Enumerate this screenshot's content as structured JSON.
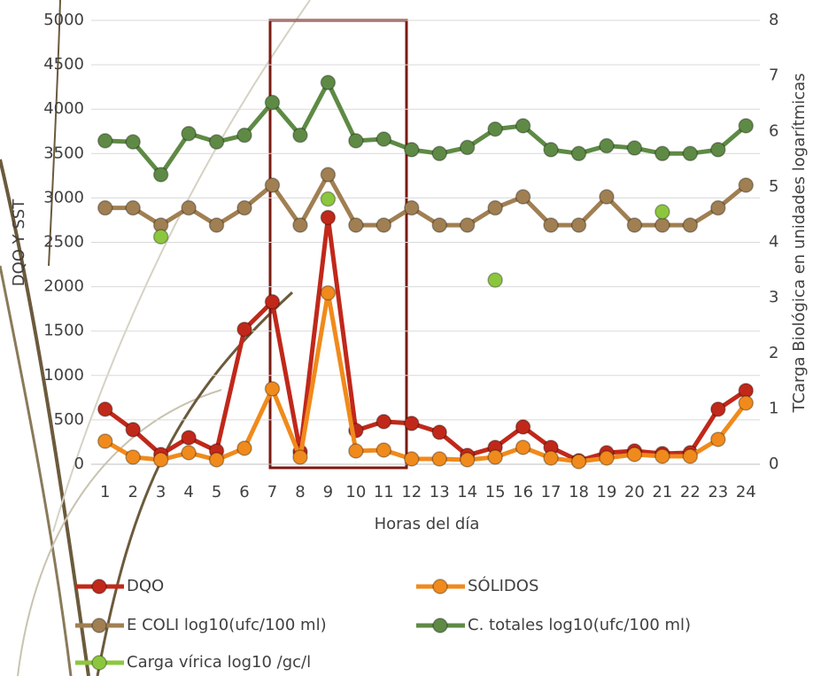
{
  "chart_data": {
    "type": "line",
    "x_label": "Horas del día",
    "y_label": "DQO Y SST",
    "y2_label": "TCarga Biológica en unidades logarítmicas",
    "categories": [
      "1",
      "2",
      "3",
      "4",
      "5",
      "6",
      "7",
      "8",
      "9",
      "10",
      "11",
      "12",
      "13",
      "14",
      "15",
      "16",
      "17",
      "18",
      "19",
      "20",
      "21",
      "22",
      "23",
      "24"
    ],
    "ylim": [
      0,
      5000
    ],
    "yticks": [
      0,
      500,
      1000,
      1500,
      2000,
      2500,
      3000,
      3500,
      4000,
      4500,
      5000
    ],
    "y2lim": [
      0,
      8
    ],
    "y2ticks": [
      0,
      1,
      2,
      3,
      4,
      5,
      6,
      7,
      8
    ],
    "grid": true,
    "series": [
      {
        "name": "DQO",
        "color": "#c0281a",
        "values": [
          620,
          390,
          110,
          300,
          150,
          1520,
          1830,
          140,
          2780,
          380,
          480,
          460,
          360,
          100,
          190,
          420,
          190,
          40,
          130,
          150,
          120,
          130,
          620,
          830
        ]
      },
      {
        "name": "SÓLIDOS",
        "color": "#f08a1c",
        "values": [
          260,
          80,
          50,
          130,
          50,
          180,
          850,
          80,
          1930,
          150,
          160,
          60,
          60,
          50,
          80,
          190,
          70,
          30,
          70,
          110,
          90,
          90,
          280,
          690
        ]
      },
      {
        "name": "E COLI log10(ufc/100 ml)",
        "color": "#a07f52",
        "axis": "y2",
        "values": [
          4.62,
          4.62,
          4.31,
          4.62,
          4.31,
          4.62,
          5.03,
          4.31,
          5.22,
          4.31,
          4.31,
          4.62,
          4.31,
          4.31,
          4.62,
          4.82,
          4.31,
          4.31,
          4.82,
          4.31,
          4.31,
          4.31,
          4.62,
          5.03
        ]
      },
      {
        "name": "C. totales log10(ufc/100 ml)",
        "color": "#5e8a45",
        "axis": "y2",
        "values": [
          5.83,
          5.81,
          5.22,
          5.96,
          5.81,
          5.93,
          6.52,
          5.93,
          6.88,
          5.83,
          5.86,
          5.67,
          5.6,
          5.71,
          6.04,
          6.1,
          5.67,
          5.6,
          5.74,
          5.7,
          5.6,
          5.6,
          5.67,
          6.1
        ]
      },
      {
        "name": "Carga vírica log10 /gc/l",
        "color": "#8cc63e",
        "axis": "y2",
        "values": [
          null,
          null,
          4.1,
          null,
          null,
          null,
          null,
          null,
          4.78,
          null,
          null,
          null,
          null,
          null,
          3.32,
          null,
          null,
          null,
          null,
          null,
          4.55,
          null,
          null,
          null
        ]
      }
    ]
  }
}
